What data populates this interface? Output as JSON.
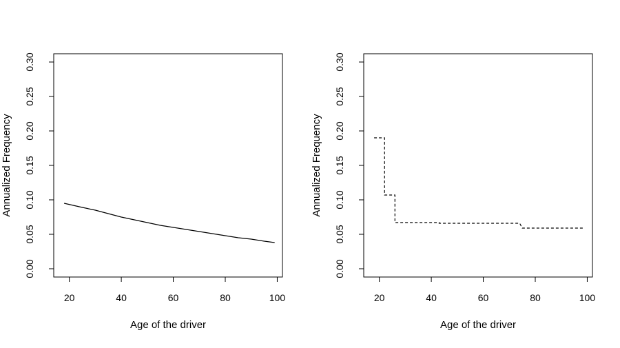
{
  "chart_data": [
    {
      "type": "line",
      "xlabel": "Age of the driver",
      "ylabel": "Annualized Frequency",
      "xlim": [
        14,
        102
      ],
      "ylim": [
        -0.012,
        0.312
      ],
      "xticks": [
        20,
        40,
        60,
        80,
        100
      ],
      "yticks": [
        "0.00",
        "0.05",
        "0.10",
        "0.15",
        "0.20",
        "0.25",
        "0.30"
      ],
      "grid": false,
      "series": [
        {
          "style": "solid",
          "x": [
            18,
            25,
            30,
            35,
            40,
            45,
            50,
            55,
            60,
            65,
            70,
            75,
            80,
            85,
            90,
            95,
            99
          ],
          "y": [
            0.095,
            0.089,
            0.085,
            0.08,
            0.075,
            0.071,
            0.067,
            0.063,
            0.06,
            0.057,
            0.054,
            0.051,
            0.048,
            0.045,
            0.043,
            0.04,
            0.038
          ]
        }
      ]
    },
    {
      "type": "line",
      "xlabel": "Age of the driver",
      "ylabel": "Annualized Frequency",
      "xlim": [
        14,
        102
      ],
      "ylim": [
        -0.012,
        0.312
      ],
      "xticks": [
        20,
        40,
        60,
        80,
        100
      ],
      "yticks": [
        "0.00",
        "0.05",
        "0.10",
        "0.15",
        "0.20",
        "0.25",
        "0.30"
      ],
      "grid": false,
      "series": [
        {
          "style": "dashed",
          "step": true,
          "x": [
            18,
            22,
            22,
            26,
            26,
            27,
            27,
            43,
            43,
            74,
            75,
            99
          ],
          "y": [
            0.19,
            0.19,
            0.107,
            0.107,
            0.067,
            0.067,
            0.067,
            0.067,
            0.066,
            0.066,
            0.059,
            0.059
          ]
        }
      ]
    }
  ]
}
